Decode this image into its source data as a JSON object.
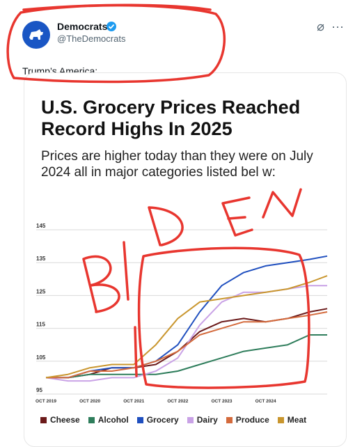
{
  "tweet": {
    "author": "Democrats",
    "handle": "@TheDemocrats",
    "text": "Trump’s America:",
    "verified_icon": "verified-badge-icon",
    "avatar_icon": "donkey-logo-icon",
    "more_label": "···",
    "grok_label": "⌀"
  },
  "card": {
    "title": "U.S. Grocery Prices Reached Record Highs In 2025",
    "subtitle": "Prices are higher today than they were on July 2024 all in major categories listed bel w:"
  },
  "annotation": {
    "handwritten_text": "BIDEN",
    "color": "#e8362f"
  },
  "chart_data": {
    "type": "line",
    "title": "",
    "xlabel": "",
    "ylabel": "",
    "ylim": [
      95,
      145
    ],
    "yticks": [
      95,
      105,
      115,
      125,
      135,
      145
    ],
    "xticks": [
      "OCT 2019",
      "OCT 2020",
      "OCT 2021",
      "OCT 2022",
      "OCT 2023",
      "OCT 2024"
    ],
    "x": [
      2019.0,
      2019.5,
      2020.0,
      2020.5,
      2021.0,
      2021.5,
      2022.0,
      2022.5,
      2023.0,
      2023.5,
      2024.0,
      2024.5,
      2025.0,
      2025.4
    ],
    "series": [
      {
        "name": "Cheese",
        "color": "#6b1a1a",
        "values": [
          100,
          100,
          101,
          103,
          103,
          104,
          108,
          114,
          117,
          118,
          117,
          118,
          120,
          121
        ]
      },
      {
        "name": "Alcohol",
        "color": "#2e7d5b",
        "values": [
          100,
          100,
          101,
          101,
          101,
          101,
          102,
          104,
          106,
          108,
          109,
          110,
          113,
          113
        ]
      },
      {
        "name": "Grocery",
        "color": "#1f4fbf",
        "values": [
          100,
          100,
          102,
          103,
          103,
          105,
          110,
          120,
          128,
          132,
          134,
          135,
          136,
          137
        ]
      },
      {
        "name": "Dairy",
        "color": "#c9a2e6",
        "values": [
          100,
          99,
          99,
          100,
          100,
          102,
          106,
          116,
          123,
          126,
          126,
          127,
          128,
          128
        ]
      },
      {
        "name": "Produce",
        "color": "#d46a3c",
        "values": [
          100,
          100,
          102,
          102,
          103,
          105,
          108,
          113,
          115,
          117,
          117,
          118,
          119,
          120
        ]
      },
      {
        "name": "Meat",
        "color": "#c9962e",
        "values": [
          100,
          101,
          103,
          104,
          104,
          110,
          118,
          123,
          124,
          125,
          126,
          127,
          129,
          131
        ]
      }
    ]
  }
}
